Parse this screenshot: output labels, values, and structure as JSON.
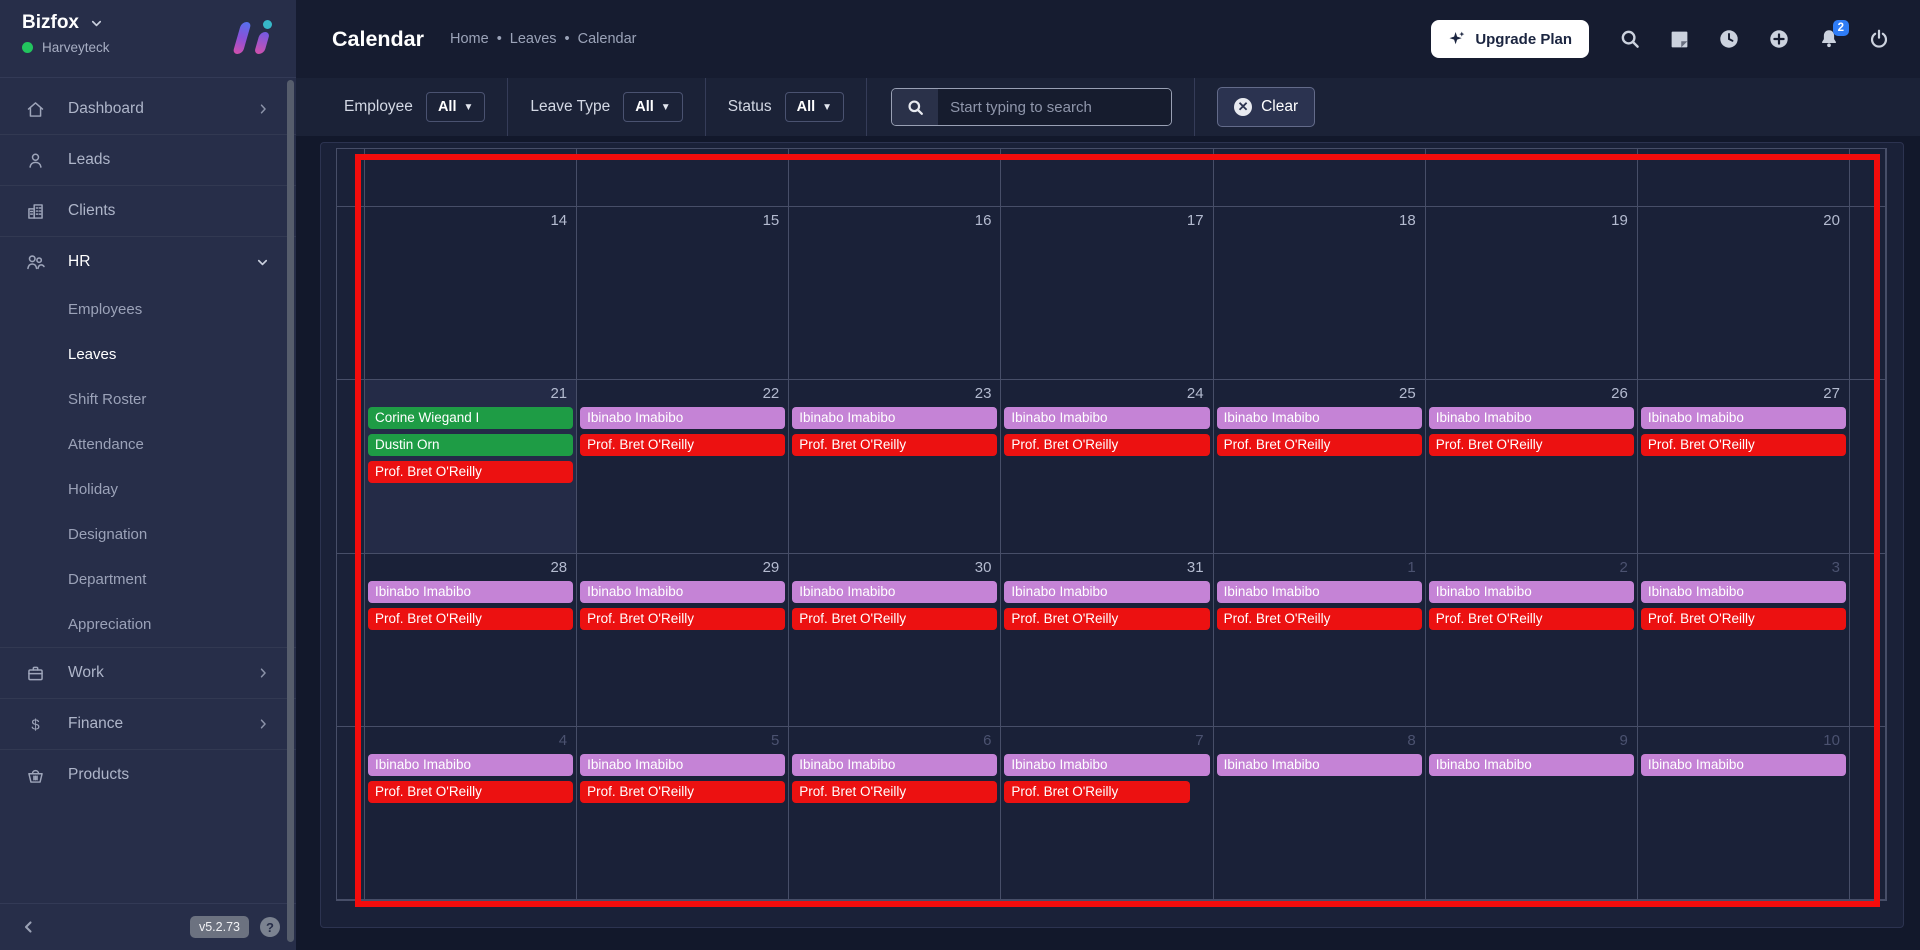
{
  "sidebar": {
    "workspace": "Bizfox",
    "account": "Harveyteck",
    "version": "v5.2.73",
    "menu": [
      {
        "label": "Dashboard",
        "icon": "home",
        "chevron": "right"
      },
      {
        "label": "Leads",
        "icon": "person"
      },
      {
        "label": "Clients",
        "icon": "building"
      },
      {
        "label": "HR",
        "icon": "people",
        "chevron": "down",
        "active": true,
        "children": [
          {
            "label": "Employees",
            "active": false
          },
          {
            "label": "Leaves",
            "active": true
          },
          {
            "label": "Shift Roster",
            "active": false
          },
          {
            "label": "Attendance",
            "active": false
          },
          {
            "label": "Holiday",
            "active": false
          },
          {
            "label": "Designation",
            "active": false
          },
          {
            "label": "Department",
            "active": false
          },
          {
            "label": "Appreciation",
            "active": false
          }
        ]
      },
      {
        "label": "Work",
        "icon": "briefcase",
        "chevron": "right"
      },
      {
        "label": "Finance",
        "icon": "dollar",
        "chevron": "right"
      },
      {
        "label": "Products",
        "icon": "basket"
      }
    ]
  },
  "header": {
    "title": "Calendar",
    "breadcrumb": [
      "Home",
      "Leaves",
      "Calendar"
    ],
    "upgrade_label": "Upgrade Plan",
    "notification_count": "2"
  },
  "filters": {
    "employee_label": "Employee",
    "leave_type_label": "Leave Type",
    "status_label": "Status",
    "all_label": "All",
    "search_placeholder": "Start typing to search",
    "clear_label": "Clear"
  },
  "calendar": {
    "event_colors": {
      "green": "#1e9c45",
      "red": "#ec1111",
      "purple": "#c583d6"
    },
    "weeks": [
      {
        "days": [
          {
            "date": ""
          },
          {
            "date": ""
          },
          {
            "date": ""
          },
          {
            "date": ""
          },
          {
            "date": ""
          },
          {
            "date": ""
          },
          {
            "date": ""
          }
        ]
      },
      {
        "days": [
          {
            "date": "14"
          },
          {
            "date": "15"
          },
          {
            "date": "16"
          },
          {
            "date": "17"
          },
          {
            "date": "18"
          },
          {
            "date": "19"
          },
          {
            "date": "20"
          }
        ]
      },
      {
        "days": [
          {
            "date": "21",
            "today": true,
            "events": [
              {
                "name": "Corine Wiegand I",
                "color": "green"
              },
              {
                "name": "Dustin Orn",
                "color": "green"
              },
              {
                "name": "Prof. Bret O'Reilly",
                "color": "red"
              }
            ]
          },
          {
            "date": "22",
            "events": [
              {
                "name": "Ibinabo Imabibo",
                "color": "purple"
              },
              {
                "name": "Prof. Bret O'Reilly",
                "color": "red"
              }
            ]
          },
          {
            "date": "23",
            "events": [
              {
                "name": "Ibinabo Imabibo",
                "color": "purple"
              },
              {
                "name": "Prof. Bret O'Reilly",
                "color": "red"
              }
            ]
          },
          {
            "date": "24",
            "events": [
              {
                "name": "Ibinabo Imabibo",
                "color": "purple"
              },
              {
                "name": "Prof. Bret O'Reilly",
                "color": "red"
              }
            ]
          },
          {
            "date": "25",
            "events": [
              {
                "name": "Ibinabo Imabibo",
                "color": "purple"
              },
              {
                "name": "Prof. Bret O'Reilly",
                "color": "red"
              }
            ]
          },
          {
            "date": "26",
            "events": [
              {
                "name": "Ibinabo Imabibo",
                "color": "purple"
              },
              {
                "name": "Prof. Bret O'Reilly",
                "color": "red"
              }
            ]
          },
          {
            "date": "27",
            "events": [
              {
                "name": "Ibinabo Imabibo",
                "color": "purple"
              },
              {
                "name": "Prof. Bret O'Reilly",
                "color": "red"
              }
            ]
          }
        ]
      },
      {
        "days": [
          {
            "date": "28",
            "events": [
              {
                "name": "Ibinabo Imabibo",
                "color": "purple"
              },
              {
                "name": "Prof. Bret O'Reilly",
                "color": "red"
              }
            ]
          },
          {
            "date": "29",
            "events": [
              {
                "name": "Ibinabo Imabibo",
                "color": "purple"
              },
              {
                "name": "Prof. Bret O'Reilly",
                "color": "red"
              }
            ]
          },
          {
            "date": "30",
            "events": [
              {
                "name": "Ibinabo Imabibo",
                "color": "purple"
              },
              {
                "name": "Prof. Bret O'Reilly",
                "color": "red"
              }
            ]
          },
          {
            "date": "31",
            "events": [
              {
                "name": "Ibinabo Imabibo",
                "color": "purple"
              },
              {
                "name": "Prof. Bret O'Reilly",
                "color": "red"
              }
            ]
          },
          {
            "date": "1",
            "muted": true,
            "events": [
              {
                "name": "Ibinabo Imabibo",
                "color": "purple"
              },
              {
                "name": "Prof. Bret O'Reilly",
                "color": "red"
              }
            ]
          },
          {
            "date": "2",
            "muted": true,
            "events": [
              {
                "name": "Ibinabo Imabibo",
                "color": "purple"
              },
              {
                "name": "Prof. Bret O'Reilly",
                "color": "red"
              }
            ]
          },
          {
            "date": "3",
            "muted": true,
            "events": [
              {
                "name": "Ibinabo Imabibo",
                "color": "purple"
              },
              {
                "name": "Prof. Bret O'Reilly",
                "color": "red"
              }
            ]
          }
        ]
      },
      {
        "days": [
          {
            "date": "4",
            "muted": true,
            "events": [
              {
                "name": "Ibinabo Imabibo",
                "color": "purple"
              },
              {
                "name": "Prof. Bret O'Reilly",
                "color": "red"
              }
            ]
          },
          {
            "date": "5",
            "muted": true,
            "events": [
              {
                "name": "Ibinabo Imabibo",
                "color": "purple"
              },
              {
                "name": "Prof. Bret O'Reilly",
                "color": "red"
              }
            ]
          },
          {
            "date": "6",
            "muted": true,
            "events": [
              {
                "name": "Ibinabo Imabibo",
                "color": "purple"
              },
              {
                "name": "Prof. Bret O'Reilly",
                "color": "red"
              }
            ]
          },
          {
            "date": "7",
            "muted": true,
            "events": [
              {
                "name": "Ibinabo Imabibo",
                "color": "purple"
              },
              {
                "name": "Prof. Bret O'Reilly",
                "color": "red",
                "short": true
              }
            ]
          },
          {
            "date": "8",
            "muted": true,
            "events": [
              {
                "name": "Ibinabo Imabibo",
                "color": "purple"
              }
            ]
          },
          {
            "date": "9",
            "muted": true,
            "events": [
              {
                "name": "Ibinabo Imabibo",
                "color": "purple"
              }
            ]
          },
          {
            "date": "10",
            "muted": true,
            "events": [
              {
                "name": "Ibinabo Imabibo",
                "color": "purple"
              }
            ]
          }
        ]
      }
    ]
  }
}
